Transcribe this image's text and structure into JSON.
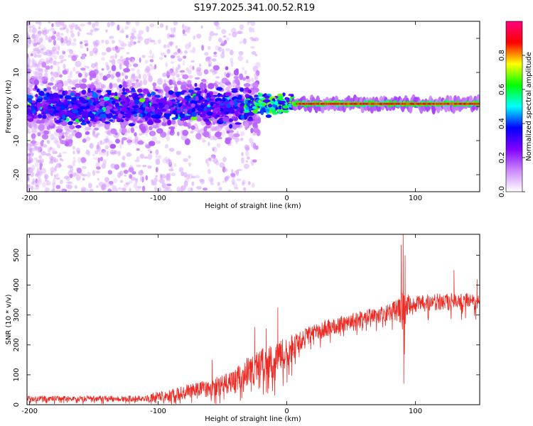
{
  "title": "S197.2025.341.00.52.R19",
  "colors": {
    "snr_line": "#ee2a24",
    "frame": "#000000",
    "background": "#ffffff"
  },
  "chart_data": [
    {
      "type": "heatmap",
      "name": "spectrogram",
      "xlabel": "Height of straight line (km)",
      "ylabel": "Frequency (Hz)",
      "xlim": [
        -202,
        150
      ],
      "ylim": [
        -25,
        25
      ],
      "xticks": [
        -200,
        -100,
        0,
        100
      ],
      "xtick_labels": [
        "-200",
        "-100",
        "0",
        "100"
      ],
      "yticks": [
        -20,
        -10,
        0,
        10,
        20
      ],
      "ytick_labels": [
        "-20",
        "-10",
        "0",
        "10",
        "20"
      ],
      "signal_tone_hz": 0.8,
      "colorbar": {
        "label": "Normalized spectral amplitude",
        "range": [
          0,
          1
        ],
        "ticks": [
          0.0,
          0.2,
          0.4,
          0.6,
          0.8
        ],
        "tick_labels": [
          "0.0",
          "0.2",
          "0.4",
          "0.6",
          "0.8"
        ],
        "colormap": [
          "#ffffff",
          "#cc88ff",
          "#8000ff",
          "#0000ff",
          "#00ffff",
          "#00ff00",
          "#ffff00",
          "#ff0000",
          "#ff0080"
        ]
      }
    },
    {
      "type": "line",
      "name": "snr",
      "xlabel": "Height of straight line (km)",
      "ylabel": "SNR (10 * v/v)",
      "xlim": [
        -202,
        150
      ],
      "ylim": [
        0,
        570
      ],
      "xticks": [
        -200,
        -100,
        0,
        100
      ],
      "xtick_labels": [
        "-200",
        "-100",
        "0",
        "100"
      ],
      "yticks": [
        0,
        100,
        200,
        300,
        400,
        500
      ],
      "ytick_labels": [
        "0",
        "100",
        "200",
        "300",
        "400",
        "500"
      ],
      "series_name": "SNR",
      "envelope": {
        "x": [
          -202,
          -110,
          -100,
          -80,
          -60,
          -50,
          -40,
          -30,
          -20,
          -10,
          0,
          10,
          20,
          30,
          40,
          50,
          60,
          70,
          80,
          88,
          91,
          95,
          100,
          120,
          150
        ],
        "base": [
          20,
          20,
          28,
          40,
          55,
          65,
          85,
          110,
          130,
          150,
          175,
          210,
          240,
          255,
          265,
          280,
          290,
          300,
          310,
          320,
          325,
          330,
          335,
          345,
          345
        ],
        "spread": [
          15,
          15,
          30,
          40,
          45,
          55,
          55,
          80,
          90,
          90,
          80,
          60,
          45,
          45,
          45,
          40,
          40,
          40,
          45,
          70,
          120,
          60,
          45,
          45,
          45
        ]
      },
      "spikes": [
        {
          "x": -58,
          "y": 150
        },
        {
          "x": -25,
          "y": 260
        },
        {
          "x": -16,
          "y": 255
        },
        {
          "x": -7,
          "y": 325
        },
        {
          "x": 89,
          "y": 535
        },
        {
          "x": 90.5,
          "y": 570
        },
        {
          "x": 91,
          "y": 70
        },
        {
          "x": 92,
          "y": 500
        },
        {
          "x": 130,
          "y": 450
        },
        {
          "x": 148,
          "y": 420
        }
      ]
    }
  ]
}
